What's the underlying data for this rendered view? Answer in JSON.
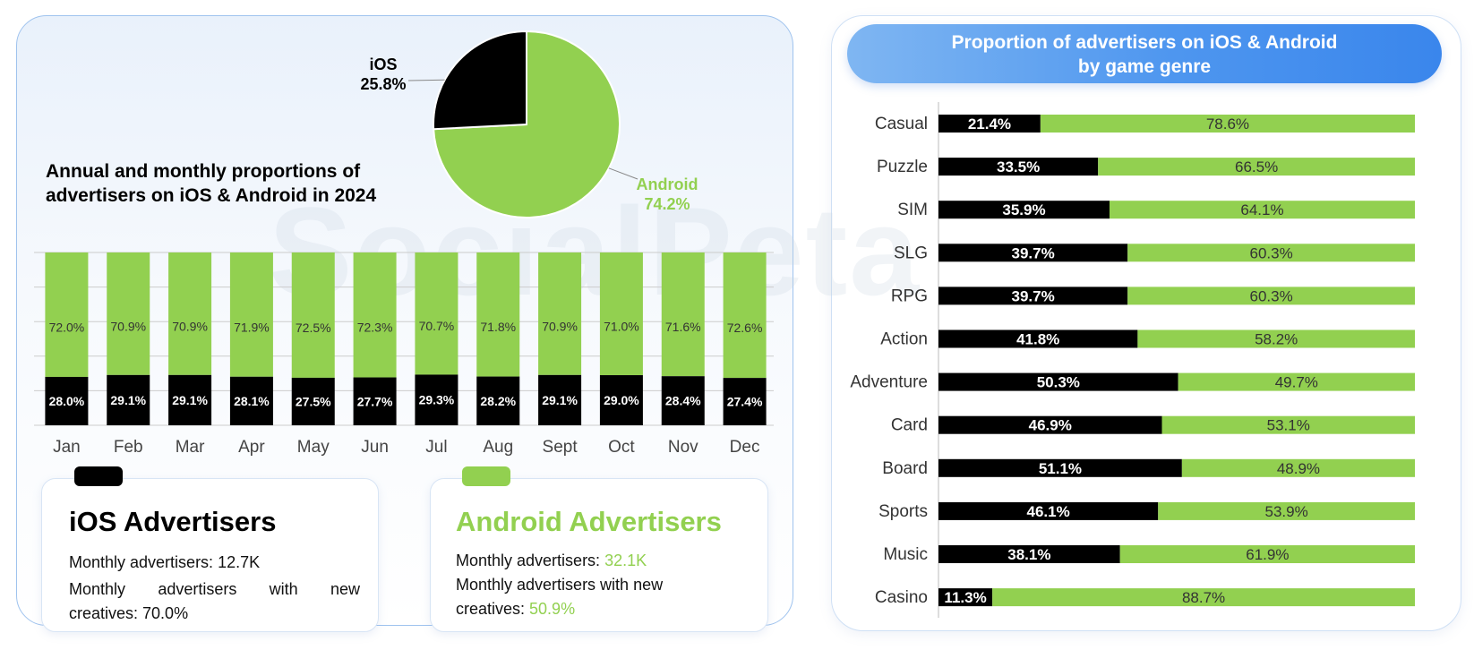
{
  "left_title": "Annual and monthly proportions of advertisers on iOS & Android in 2024",
  "right_title_line1": "Proportion of advertisers on iOS & Android",
  "right_title_line2": "by game genre",
  "watermark": "SocialPeta",
  "colors": {
    "ios": "#000000",
    "android": "#92d050",
    "axis": "#cccccc"
  },
  "chart_data": [
    {
      "type": "pie",
      "slices": [
        {
          "label": "iOS",
          "value": 25.8,
          "display": "25.8%",
          "color": "#000000"
        },
        {
          "label": "Android",
          "value": 74.2,
          "display": "74.2%",
          "color": "#92d050"
        }
      ]
    },
    {
      "type": "bar",
      "stacked": true,
      "normalized": true,
      "categories": [
        "Jan",
        "Feb",
        "Mar",
        "Apr",
        "May",
        "Jun",
        "Jul",
        "Aug",
        "Sept",
        "Oct",
        "Nov",
        "Dec"
      ],
      "series": [
        {
          "color": "#000000",
          "values": [
            28.0,
            29.1,
            29.1,
            28.1,
            27.5,
            27.7,
            29.3,
            28.2,
            29.1,
            29.0,
            28.4,
            27.4
          ],
          "labels": [
            "28.0%",
            "29.1%",
            "29.1%",
            "28.1%",
            "27.5%",
            "27.7%",
            "29.3%",
            "28.2%",
            "29.1%",
            "29.0%",
            "28.4%",
            "27.4%"
          ]
        },
        {
          "color": "#92d050",
          "values": [
            72.0,
            70.9,
            70.9,
            71.9,
            72.5,
            72.3,
            70.7,
            71.8,
            70.9,
            71.0,
            71.6,
            72.6
          ],
          "labels": [
            "72.0%",
            "70.9%",
            "70.9%",
            "71.9%",
            "72.5%",
            "72.3%",
            "70.7%",
            "71.8%",
            "70.9%",
            "71.0%",
            "71.6%",
            "72.6%"
          ]
        }
      ],
      "ylim": [
        0,
        100
      ],
      "grid": true
    },
    {
      "type": "bar",
      "orientation": "horizontal",
      "stacked": true,
      "normalized": true,
      "title": "Proportion of advertisers on iOS & Android by game genre",
      "categories": [
        "Casual",
        "Puzzle",
        "SIM",
        "SLG",
        "RPG",
        "Action",
        "Adventure",
        "Card",
        "Board",
        "Sports",
        "Music",
        "Casino"
      ],
      "series": [
        {
          "color": "#000000",
          "values": [
            21.4,
            33.5,
            35.9,
            39.7,
            39.7,
            41.8,
            50.3,
            46.9,
            51.1,
            46.1,
            38.1,
            11.3
          ],
          "labels": [
            "21.4%",
            "33.5%",
            "35.9%",
            "39.7%",
            "39.7%",
            "41.8%",
            "50.3%",
            "46.9%",
            "51.1%",
            "46.1%",
            "38.1%",
            "11.3%"
          ]
        },
        {
          "color": "#92d050",
          "values": [
            78.6,
            66.5,
            64.1,
            60.3,
            60.3,
            58.2,
            49.7,
            53.1,
            48.9,
            53.9,
            61.9,
            88.7
          ],
          "labels": [
            "78.6%",
            "66.5%",
            "64.1%",
            "60.3%",
            "60.3%",
            "58.2%",
            "49.7%",
            "53.1%",
            "48.9%",
            "53.9%",
            "61.9%",
            "88.7%"
          ]
        }
      ],
      "xlim": [
        0,
        100
      ]
    }
  ],
  "ios_card": {
    "title": "iOS Advertisers",
    "monthly_label": "Monthly advertisers: ",
    "monthly_value": "12.7K",
    "creatives_line1": "Monthly advertisers with new",
    "creatives_label": "creatives: ",
    "creatives_value": "70.0%"
  },
  "android_card": {
    "title": "Android Advertisers",
    "monthly_label": "Monthly advertisers: ",
    "monthly_value": "32.1K",
    "creatives_line1": "Monthly advertisers with new",
    "creatives_label": "creatives: ",
    "creatives_value": "50.9%"
  }
}
